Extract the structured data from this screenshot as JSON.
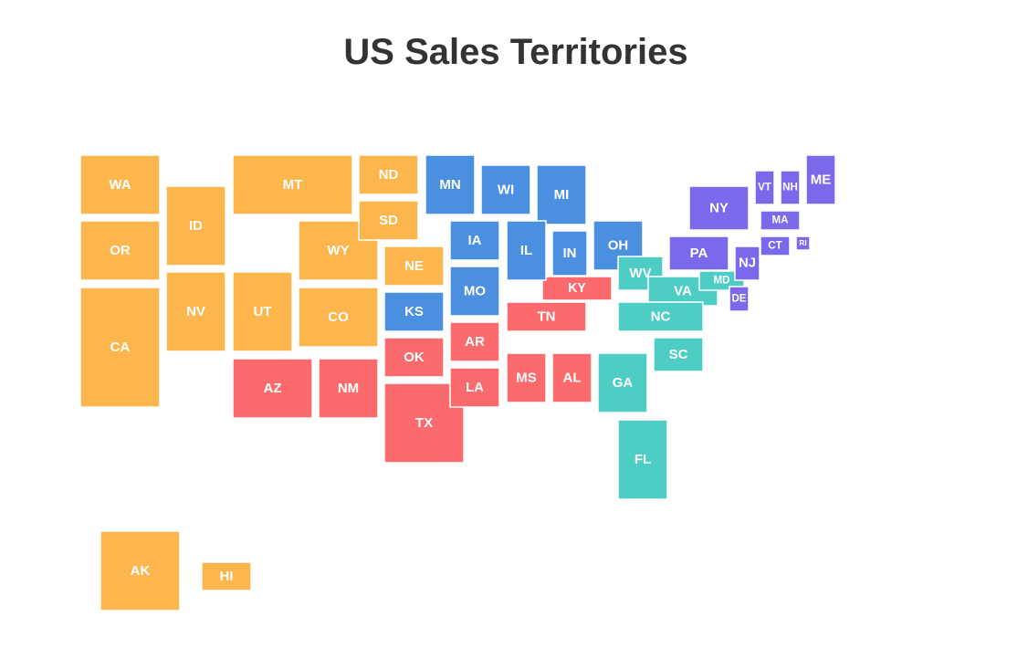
{
  "title": "US Sales Territories",
  "states": [
    {
      "label": "WA",
      "color": "#fdb64e"
    },
    {
      "label": "OR",
      "color": "#fdb64e"
    },
    {
      "label": "CA",
      "color": "#fdb64e"
    },
    {
      "label": "ID",
      "color": "#fdb64e"
    },
    {
      "label": "NV",
      "color": "#fdb64e"
    },
    {
      "label": "MT",
      "color": "#fdb64e"
    },
    {
      "label": "UT",
      "color": "#fdb64e"
    },
    {
      "label": "WY",
      "color": "#fdb64e"
    },
    {
      "label": "CO",
      "color": "#fdb64e"
    },
    {
      "label": "ND",
      "color": "#fdb64e"
    },
    {
      "label": "SD",
      "color": "#fdb64e"
    },
    {
      "label": "NE",
      "color": "#fdb64e"
    },
    {
      "label": "AK",
      "color": "#fdb64e"
    },
    {
      "label": "HI",
      "color": "#fdb64e"
    },
    {
      "label": "AZ",
      "color": "#fb6b6d"
    },
    {
      "label": "NM",
      "color": "#fb6b6d"
    },
    {
      "label": "OK",
      "color": "#fb6b6d"
    },
    {
      "label": "TX",
      "color": "#fb6b6d"
    },
    {
      "label": "AR",
      "color": "#fb6b6d"
    },
    {
      "label": "LA",
      "color": "#fb6b6d"
    },
    {
      "label": "TN",
      "color": "#fb6b6d"
    },
    {
      "label": "KY",
      "color": "#fb6b6d"
    },
    {
      "label": "MS",
      "color": "#fb6b6d"
    },
    {
      "label": "AL",
      "color": "#fb6b6d"
    },
    {
      "label": "MN",
      "color": "#4a8fe0"
    },
    {
      "label": "WI",
      "color": "#4a8fe0"
    },
    {
      "label": "MI",
      "color": "#4a8fe0"
    },
    {
      "label": "IA",
      "color": "#4a8fe0"
    },
    {
      "label": "IL",
      "color": "#4a8fe0"
    },
    {
      "label": "IN",
      "color": "#4a8fe0"
    },
    {
      "label": "OH",
      "color": "#4a8fe0"
    },
    {
      "label": "KS",
      "color": "#4a8fe0"
    },
    {
      "label": "MO",
      "color": "#4a8fe0"
    },
    {
      "label": "WV",
      "color": "#4ecdc4"
    },
    {
      "label": "VA",
      "color": "#4ecdc4"
    },
    {
      "label": "NC",
      "color": "#4ecdc4"
    },
    {
      "label": "SC",
      "color": "#4ecdc4"
    },
    {
      "label": "GA",
      "color": "#4ecdc4"
    },
    {
      "label": "FL",
      "color": "#4ecdc4"
    },
    {
      "label": "MD",
      "color": "#4ecdc4"
    },
    {
      "label": "NY",
      "color": "#7b69ec"
    },
    {
      "label": "PA",
      "color": "#7b69ec"
    },
    {
      "label": "NJ",
      "color": "#7b69ec"
    },
    {
      "label": "DE",
      "color": "#7b69ec"
    },
    {
      "label": "VT",
      "color": "#7b69ec"
    },
    {
      "label": "NH",
      "color": "#7b69ec"
    },
    {
      "label": "ME",
      "color": "#7b69ec"
    },
    {
      "label": "MA",
      "color": "#7b69ec"
    },
    {
      "label": "CT",
      "color": "#7b69ec"
    },
    {
      "label": "RI",
      "color": "#7b69ec"
    }
  ]
}
